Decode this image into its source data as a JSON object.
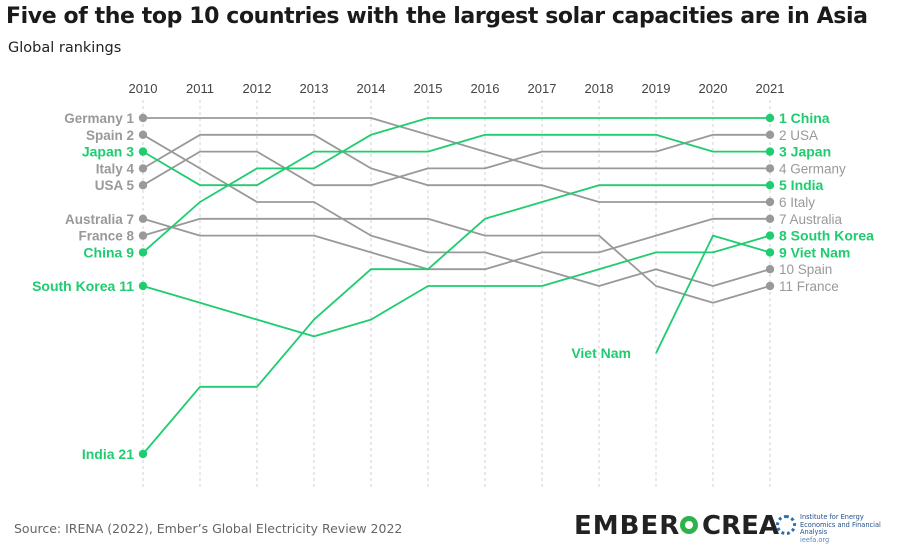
{
  "title": "Five of the top 10 countries with the largest solar capacities are in Asia",
  "subtitle": "Global rankings",
  "source": "Source: IRENA (2022), Ember’s Global Electricity Review 2022",
  "logos": {
    "ember": "EMBER",
    "crea": "CREA",
    "ieefa": "Institute for Energy Economics and Financial Analysis",
    "ieefa_url": "ieefa.org"
  },
  "colors": {
    "highlight": "#1fcc6f",
    "muted": "#999999",
    "grid": "#d8d8d8"
  },
  "chart_data": {
    "type": "line",
    "x": [
      2010,
      2011,
      2012,
      2013,
      2014,
      2015,
      2016,
      2017,
      2018,
      2019,
      2020,
      2021
    ],
    "y_reversed": true,
    "series": [
      {
        "name": "Germany",
        "values": [
          1,
          1,
          1,
          1,
          1,
          2,
          3,
          4,
          4,
          4,
          4,
          4
        ],
        "highlight": false,
        "start_label": "Germany 1",
        "end_label": "4 Germany"
      },
      {
        "name": "Spain",
        "values": [
          2,
          4,
          6,
          6,
          8,
          9,
          9,
          10,
          11,
          10,
          11,
          10
        ],
        "highlight": false,
        "start_label": "Spain 2",
        "end_label": "10 Spain"
      },
      {
        "name": "Japan",
        "values": [
          3,
          5,
          5,
          3,
          3,
          3,
          2,
          2,
          2,
          2,
          3,
          3
        ],
        "highlight": true,
        "start_label": "Japan 3",
        "end_label": "3 Japan"
      },
      {
        "name": "Italy",
        "values": [
          4,
          2,
          2,
          2,
          4,
          5,
          5,
          5,
          6,
          6,
          6,
          6
        ],
        "highlight": false,
        "start_label": "Italy 4",
        "end_label": "6 Italy"
      },
      {
        "name": "USA",
        "values": [
          5,
          3,
          3,
          5,
          5,
          4,
          4,
          3,
          3,
          3,
          2,
          2
        ],
        "highlight": false,
        "start_label": "USA 5",
        "end_label": "2 USA"
      },
      {
        "name": "Australia",
        "values": [
          7,
          8,
          8,
          8,
          9,
          10,
          10,
          9,
          9,
          8,
          7,
          7
        ],
        "highlight": false,
        "start_label": "Australia 7",
        "end_label": "7 Australia"
      },
      {
        "name": "France",
        "values": [
          8,
          7,
          7,
          7,
          7,
          7,
          8,
          8,
          8,
          11,
          12,
          11
        ],
        "highlight": false,
        "start_label": "France 8",
        "end_label": "11 France"
      },
      {
        "name": "China",
        "values": [
          9,
          6,
          4,
          4,
          2,
          1,
          1,
          1,
          1,
          1,
          1,
          1
        ],
        "highlight": true,
        "start_label": "China 9",
        "end_label": "1 China"
      },
      {
        "name": "South Korea",
        "values": [
          11,
          12,
          13,
          14,
          13,
          11,
          11,
          11,
          10,
          9,
          9,
          8
        ],
        "highlight": true,
        "start_label": "South Korea 11",
        "end_label": "8 South Korea"
      },
      {
        "name": "India",
        "values": [
          21,
          17,
          17,
          13,
          10,
          10,
          7,
          6,
          5,
          5,
          5,
          5
        ],
        "highlight": true,
        "start_label": "India 21",
        "end_label": "5 India"
      },
      {
        "name": "Viet Nam",
        "values": [
          null,
          null,
          null,
          null,
          null,
          null,
          null,
          null,
          null,
          15,
          8,
          9
        ],
        "highlight": true,
        "start_label": "Viet Nam",
        "end_label": "9 Viet Nam"
      }
    ]
  }
}
